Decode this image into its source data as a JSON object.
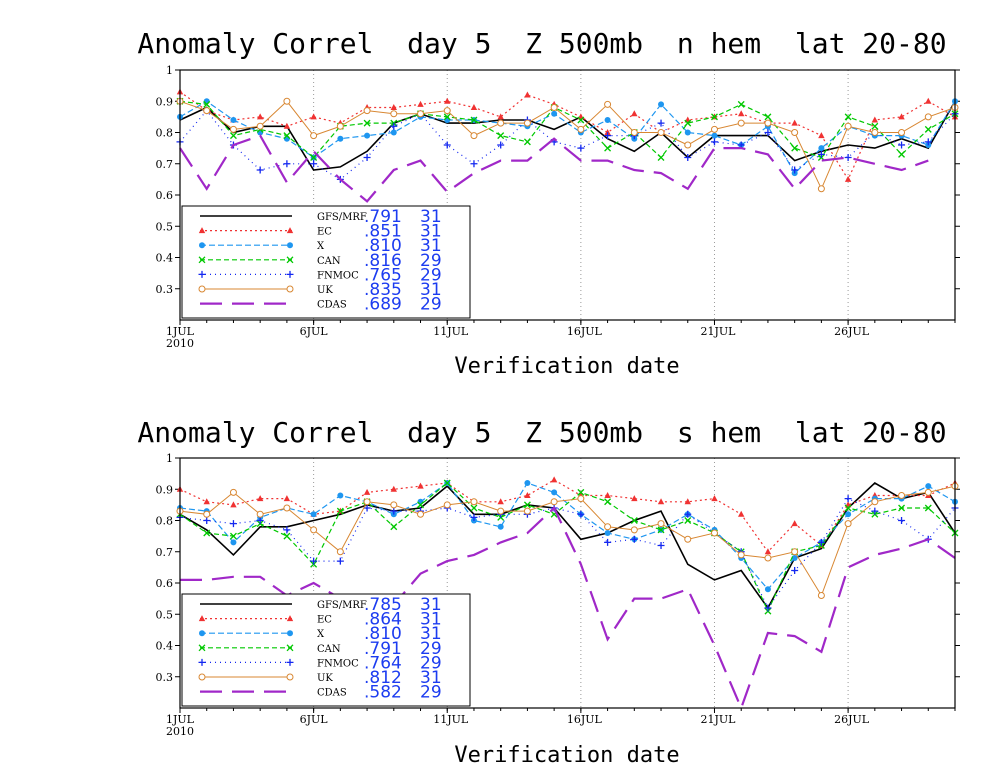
{
  "charts": [
    {
      "type": "line",
      "title": "Anomaly Correl  day 5  Z 500mb  n hem  lat 20-80",
      "xlabel": "Verification date",
      "ylim": [
        0.2,
        1.0
      ],
      "yticks": [
        0.3,
        0.4,
        0.5,
        0.6,
        0.7,
        0.8,
        0.9,
        1
      ],
      "ytick_labels": [
        "0.3",
        "0.4",
        "0.5",
        "0.6",
        "0.7",
        "0.8",
        "0.9",
        "1"
      ],
      "xlim": [
        1,
        30
      ],
      "xticks": [
        {
          "day": 1,
          "label": "1JUL",
          "sub": "2010"
        },
        {
          "day": 6,
          "label": "6JUL"
        },
        {
          "day": 11,
          "label": "11JUL"
        },
        {
          "day": 16,
          "label": "16JUL"
        },
        {
          "day": 21,
          "label": "21JUL"
        },
        {
          "day": 26,
          "label": "26JUL"
        }
      ],
      "grid": "vertical-dotted",
      "legend_position": "lower-left",
      "series": [
        {
          "name": "GFS/MRF",
          "mean": ".791",
          "n": "31",
          "color": "#000000",
          "dash": "",
          "marker": "none",
          "width": 1.6,
          "values": [
            0.84,
            0.88,
            0.8,
            0.82,
            0.82,
            0.68,
            0.69,
            0.74,
            0.83,
            0.86,
            0.83,
            0.83,
            0.84,
            0.84,
            0.81,
            0.85,
            0.78,
            0.74,
            0.8,
            0.72,
            0.79,
            0.79,
            0.79,
            0.71,
            0.74,
            0.76,
            0.75,
            0.78,
            0.75,
            0.9
          ]
        },
        {
          "name": "EC",
          "mean": ".851",
          "n": "31",
          "color": "#f03232",
          "dash": "2 3",
          "marker": "triangle",
          "width": 1.2,
          "values": [
            0.93,
            0.87,
            0.84,
            0.85,
            0.82,
            0.85,
            0.83,
            0.88,
            0.88,
            0.89,
            0.9,
            0.88,
            0.85,
            0.92,
            0.89,
            0.85,
            0.8,
            0.86,
            0.8,
            0.84,
            0.85,
            0.86,
            0.83,
            0.83,
            0.79,
            0.65,
            0.84,
            0.85,
            0.9,
            0.85
          ]
        },
        {
          "name": "X",
          "mean": ".810",
          "n": "31",
          "color": "#1e96f0",
          "dash": "6 3",
          "marker": "circle",
          "width": 1.2,
          "values": [
            0.85,
            0.9,
            0.84,
            0.8,
            0.78,
            0.72,
            0.78,
            0.79,
            0.8,
            0.85,
            0.84,
            0.84,
            0.83,
            0.82,
            0.86,
            0.8,
            0.84,
            0.78,
            0.89,
            0.8,
            0.79,
            0.76,
            0.82,
            0.67,
            0.75,
            0.82,
            0.79,
            0.79,
            0.76,
            0.9
          ]
        },
        {
          "name": "CAN",
          "mean": ".816",
          "n": "29",
          "color": "#00c800",
          "dash": "5 3",
          "marker": "x",
          "width": 1.2,
          "values": [
            0.9,
            0.89,
            0.79,
            0.81,
            0.79,
            0.72,
            0.82,
            0.83,
            0.83,
            0.86,
            0.85,
            0.84,
            0.79,
            0.77,
            0.88,
            0.84,
            0.75,
            0.8,
            0.72,
            0.83,
            0.85,
            0.89,
            0.85,
            0.75,
            0.72,
            0.85,
            0.82,
            0.73,
            0.81,
            0.86
          ]
        },
        {
          "name": "FNMOC",
          "mean": ".765",
          "n": "29",
          "color": "#1428f0",
          "dash": "1 4",
          "marker": "plus",
          "width": 1.2,
          "values": [
            0.77,
            0.87,
            0.76,
            0.68,
            0.7,
            0.7,
            0.65,
            0.72,
            0.82,
            0.86,
            0.76,
            0.7,
            0.76,
            0.84,
            0.77,
            0.75,
            0.79,
            0.79,
            0.83,
            0.72,
            0.77,
            0.76,
            0.8,
            0.68,
            0.73,
            0.72,
            0.8,
            0.76,
            0.77,
            0.86
          ]
        },
        {
          "name": "UK",
          "mean": ".835",
          "n": "31",
          "color": "#d88732",
          "dash": "",
          "marker": "ocircle",
          "width": 1.0,
          "values": [
            0.9,
            0.87,
            0.81,
            0.82,
            0.9,
            0.79,
            0.82,
            0.87,
            0.86,
            0.86,
            0.87,
            0.79,
            0.83,
            0.83,
            0.88,
            0.81,
            0.89,
            0.8,
            0.8,
            0.76,
            0.81,
            0.83,
            0.83,
            0.8,
            0.62,
            0.82,
            0.8,
            0.8,
            0.85,
            0.88
          ]
        },
        {
          "name": "CDAS",
          "mean": ".689",
          "n": "29",
          "color": "#a028c8",
          "dash": "22 10",
          "marker": "none",
          "width": 2.2,
          "values": [
            0.75,
            0.62,
            0.76,
            0.79,
            0.64,
            0.74,
            0.65,
            0.58,
            0.68,
            0.71,
            0.61,
            0.67,
            0.71,
            0.71,
            0.78,
            0.71,
            0.71,
            0.68,
            0.67,
            0.62,
            0.75,
            0.75,
            0.73,
            0.62,
            0.71,
            0.72,
            0.7,
            0.68,
            0.71,
            null
          ]
        }
      ]
    },
    {
      "type": "line",
      "title": "Anomaly Correl  day 5  Z 500mb  s hem  lat 20-80",
      "xlabel": "Verification date",
      "ylim": [
        0.2,
        1.0
      ],
      "yticks": [
        0.3,
        0.4,
        0.5,
        0.6,
        0.7,
        0.8,
        0.9,
        1
      ],
      "ytick_labels": [
        "0.3",
        "0.4",
        "0.5",
        "0.6",
        "0.7",
        "0.8",
        "0.9",
        "1"
      ],
      "xlim": [
        1,
        30
      ],
      "xticks": [
        {
          "day": 1,
          "label": "1JUL",
          "sub": "2010"
        },
        {
          "day": 6,
          "label": "6JUL"
        },
        {
          "day": 11,
          "label": "11JUL"
        },
        {
          "day": 16,
          "label": "16JUL"
        },
        {
          "day": 21,
          "label": "21JUL"
        },
        {
          "day": 26,
          "label": "26JUL"
        }
      ],
      "grid": "vertical-dotted",
      "legend_position": "lower-left",
      "series": [
        {
          "name": "GFS/MRF",
          "mean": ".785",
          "n": "31",
          "color": "#000000",
          "dash": "",
          "marker": "none",
          "width": 1.6,
          "values": [
            0.82,
            0.77,
            0.69,
            0.78,
            0.78,
            0.8,
            0.82,
            0.85,
            0.83,
            0.84,
            0.91,
            0.82,
            0.82,
            0.85,
            0.84,
            0.74,
            0.76,
            0.8,
            0.83,
            0.66,
            0.61,
            0.64,
            0.52,
            0.68,
            0.71,
            0.84,
            0.92,
            0.87,
            0.89,
            0.76
          ]
        },
        {
          "name": "EC",
          "mean": ".864",
          "n": "31",
          "color": "#f03232",
          "dash": "2 3",
          "marker": "triangle",
          "width": 1.2,
          "values": [
            0.9,
            0.86,
            0.85,
            0.87,
            0.87,
            0.82,
            0.83,
            0.89,
            0.9,
            0.91,
            0.92,
            0.86,
            0.86,
            0.88,
            0.93,
            0.88,
            0.88,
            0.87,
            0.86,
            0.86,
            0.87,
            0.82,
            0.7,
            0.79,
            0.72,
            0.85,
            0.88,
            0.88,
            0.88,
            0.92
          ]
        },
        {
          "name": "X",
          "mean": ".810",
          "n": "31",
          "color": "#1e96f0",
          "dash": "6 3",
          "marker": "circle",
          "width": 1.2,
          "values": [
            0.84,
            0.83,
            0.73,
            0.81,
            0.84,
            0.82,
            0.88,
            0.86,
            0.82,
            0.86,
            0.92,
            0.8,
            0.78,
            0.92,
            0.89,
            0.82,
            0.76,
            0.74,
            0.77,
            0.82,
            0.77,
            0.68,
            0.58,
            0.68,
            0.73,
            0.82,
            0.87,
            0.87,
            0.91,
            0.86
          ]
        },
        {
          "name": "CAN",
          "mean": ".791",
          "n": "29",
          "color": "#00c800",
          "dash": "5 3",
          "marker": "x",
          "width": 1.2,
          "values": [
            0.82,
            0.76,
            0.75,
            0.79,
            0.75,
            0.66,
            0.83,
            0.86,
            0.78,
            0.85,
            0.92,
            0.84,
            0.81,
            0.85,
            0.82,
            0.89,
            0.86,
            0.8,
            0.77,
            0.8,
            0.76,
            0.7,
            0.51,
            0.7,
            0.72,
            0.84,
            0.82,
            0.84,
            0.84,
            0.76
          ]
        },
        {
          "name": "FNMOC",
          "mean": ".764",
          "n": "29",
          "color": "#1428f0",
          "dash": "1 4",
          "marker": "plus",
          "width": 1.2,
          "values": [
            0.81,
            0.8,
            0.79,
            0.8,
            0.77,
            0.67,
            0.67,
            0.84,
            0.83,
            0.83,
            0.84,
            0.81,
            0.82,
            0.82,
            0.84,
            0.82,
            0.73,
            0.74,
            0.72,
            0.82,
            0.76,
            0.7,
            0.52,
            0.64,
            0.73,
            0.87,
            0.83,
            0.8,
            0.74,
            0.84
          ]
        },
        {
          "name": "UK",
          "mean": ".812",
          "n": "31",
          "color": "#d88732",
          "dash": "",
          "marker": "ocircle",
          "width": 1.0,
          "values": [
            0.83,
            0.82,
            0.89,
            0.82,
            0.84,
            0.77,
            0.7,
            0.86,
            0.85,
            0.82,
            0.85,
            0.86,
            0.83,
            0.83,
            0.86,
            0.87,
            0.78,
            0.77,
            0.79,
            0.74,
            0.76,
            0.69,
            0.68,
            0.7,
            0.56,
            0.79,
            0.86,
            0.88,
            0.89,
            0.91
          ]
        },
        {
          "name": "CDAS",
          "mean": ".582",
          "n": "29",
          "color": "#a028c8",
          "dash": "22 10",
          "marker": "none",
          "width": 2.2,
          "values": [
            0.61,
            0.61,
            0.62,
            0.62,
            0.56,
            0.6,
            0.55,
            0.52,
            0.53,
            0.63,
            0.67,
            0.69,
            0.73,
            0.76,
            0.84,
            0.66,
            0.42,
            0.55,
            0.55,
            0.58,
            0.4,
            0.19,
            0.44,
            0.43,
            0.38,
            0.65,
            0.69,
            0.71,
            0.74,
            0.68
          ]
        }
      ]
    }
  ]
}
